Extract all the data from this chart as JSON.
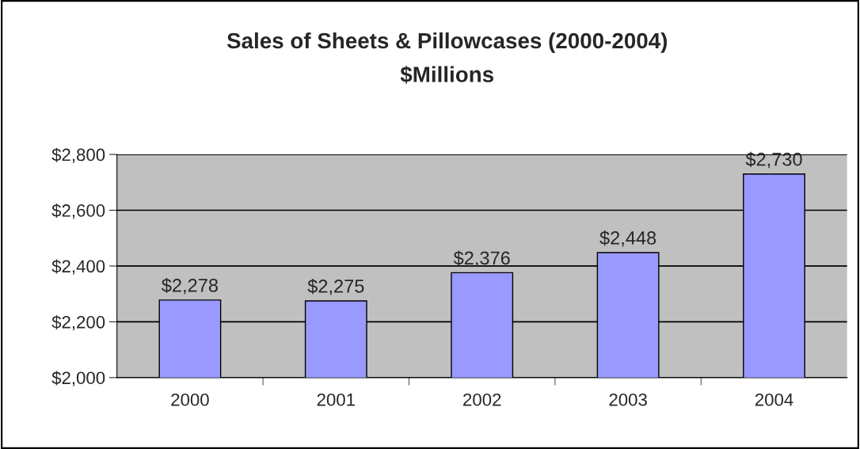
{
  "chart_data": {
    "type": "bar",
    "title": "Sales of Sheets & Pillowcases (2000-2004)",
    "subtitle": "$Millions",
    "categories": [
      "2000",
      "2001",
      "2002",
      "2003",
      "2004"
    ],
    "series": [
      {
        "color": "#9999ff",
        "values": [
          2278,
          2275,
          2376,
          2448,
          2730
        ]
      }
    ],
    "value_labels": [
      "$2,278",
      "$2,275",
      "$2,376",
      "$2,448",
      "$2,730"
    ],
    "ylim": [
      2000,
      2800
    ],
    "yticks": [
      {
        "value": 2000,
        "label": "$2,000"
      },
      {
        "value": 2200,
        "label": "$2,200"
      },
      {
        "value": 2400,
        "label": "$2,400"
      },
      {
        "value": 2600,
        "label": "$2,600"
      },
      {
        "value": 2800,
        "label": "$2,800"
      }
    ],
    "grid": "y",
    "legend": false
  }
}
